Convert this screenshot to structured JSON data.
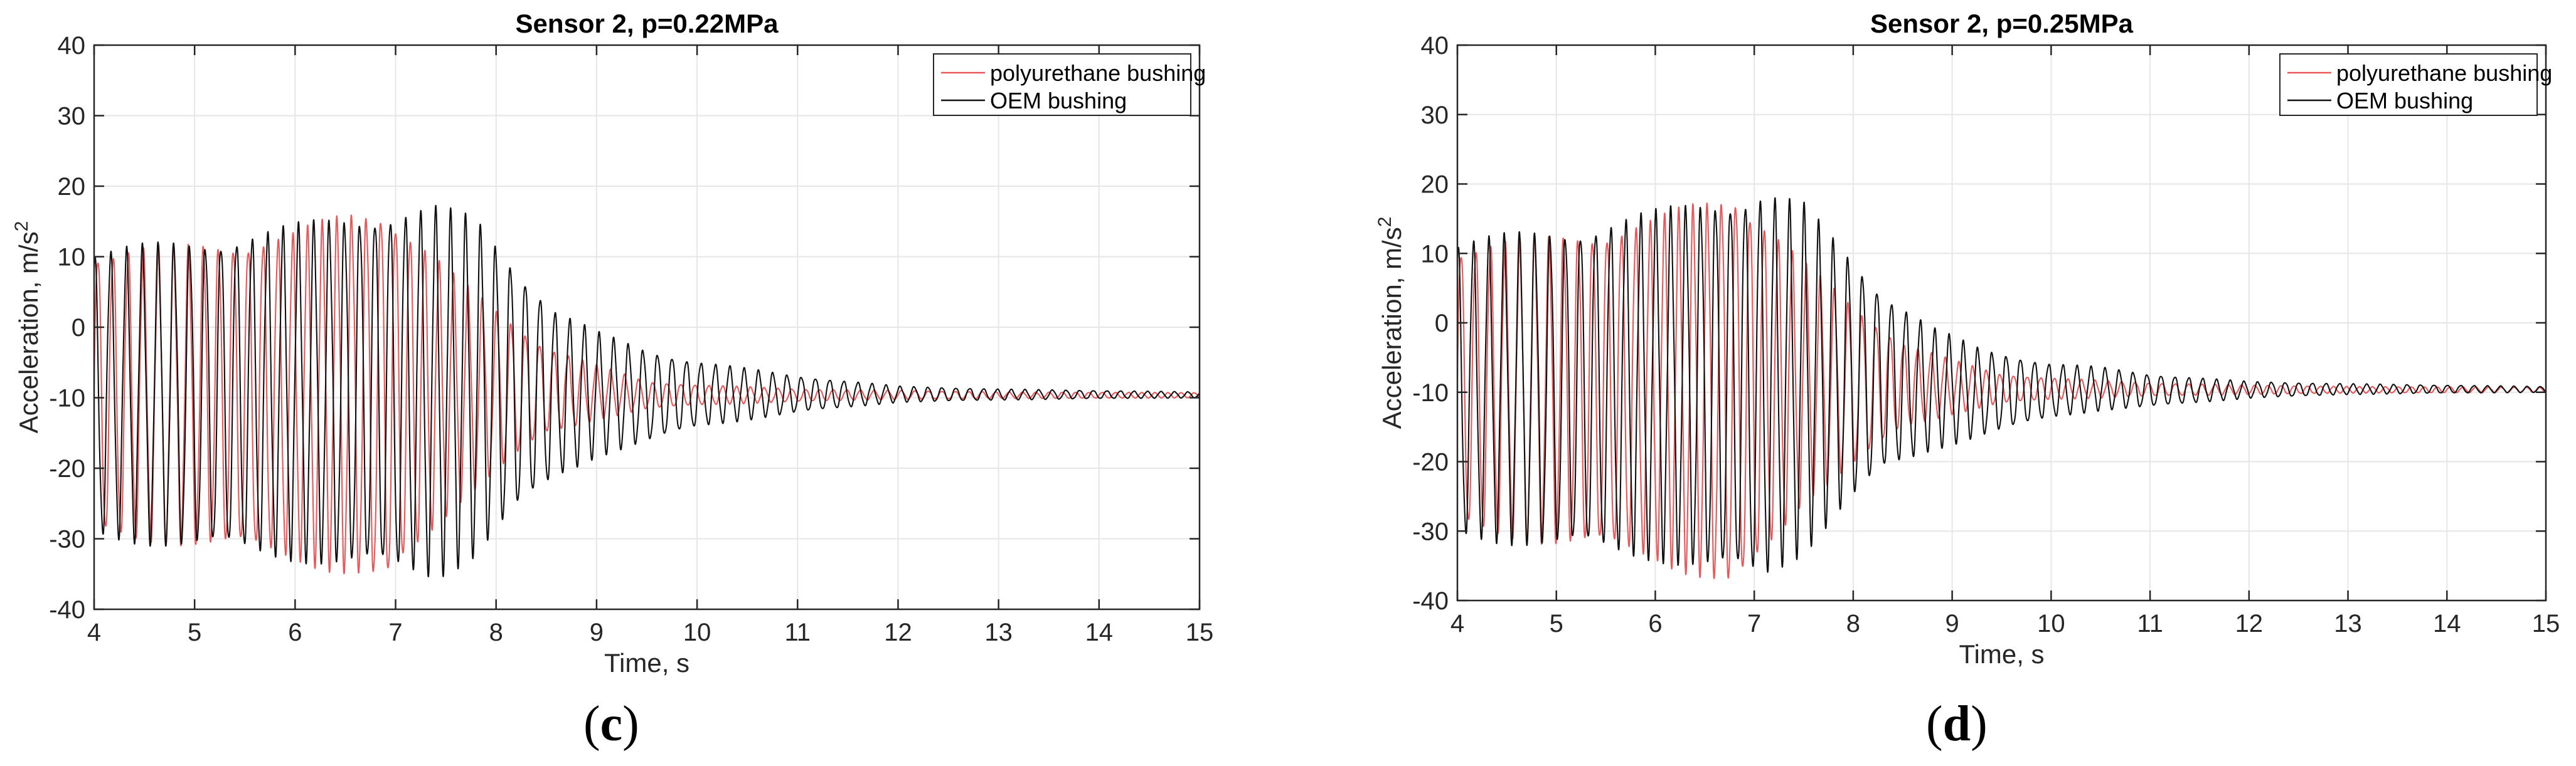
{
  "chart_data": [
    {
      "type": "line",
      "panel_label": "c",
      "title": "Sensor 2, p=0.22MPa",
      "xlabel": "Time, s",
      "ylabel": "Acceleration, m/s",
      "ylabel_superscript": "2",
      "xlim": [
        4,
        15
      ],
      "ylim": [
        -40,
        40
      ],
      "xticks": [
        4,
        5,
        6,
        7,
        8,
        9,
        10,
        11,
        12,
        13,
        14,
        15
      ],
      "yticks": [
        -40,
        -30,
        -20,
        -10,
        0,
        10,
        20,
        30,
        40
      ],
      "grid": true,
      "legend_position": "top-right",
      "series": [
        {
          "name": "polyurethane bushing",
          "color": "#e8585a",
          "offset": -9.5,
          "freq_hz": [
            6.6,
            7.7
          ],
          "envelope_upper": [
            [
              4,
              10.2
            ],
            [
              5,
              10.8
            ],
            [
              6,
              12.6
            ],
            [
              6.6,
              15.5
            ],
            [
              6.9,
              16
            ],
            [
              7.2,
              12
            ],
            [
              7.6,
              6.5
            ],
            [
              8,
              2
            ],
            [
              8.5,
              -3
            ],
            [
              9,
              -5.5
            ],
            [
              9.5,
              -7.8
            ],
            [
              10,
              -8.2
            ],
            [
              11,
              -8.8
            ],
            [
              12,
              -9
            ],
            [
              13,
              -9.2
            ],
            [
              15,
              -9.3
            ]
          ],
          "envelope_lower": [
            [
              4,
              -29
            ],
            [
              5,
              -30
            ],
            [
              6,
              -32
            ],
            [
              6.6,
              -34.5
            ],
            [
              6.9,
              -36
            ],
            [
              7.2,
              -31
            ],
            [
              7.6,
              -24.5
            ],
            [
              8,
              -20
            ],
            [
              8.5,
              -15
            ],
            [
              9,
              -13
            ],
            [
              9.5,
              -11.5
            ],
            [
              10,
              -11
            ],
            [
              11,
              -10.5
            ],
            [
              12,
              -10.2
            ],
            [
              13,
              -10.1
            ],
            [
              15,
              -10
            ]
          ]
        },
        {
          "name": "OEM bushing",
          "color": "#111111",
          "offset": -9.5,
          "freq_hz": [
            6.3,
            7.5
          ],
          "envelope_upper": [
            [
              4,
              10
            ],
            [
              5,
              11.5
            ],
            [
              6,
              13.5
            ],
            [
              6.8,
              15.5
            ],
            [
              7.4,
              16
            ],
            [
              7.8,
              14.5
            ],
            [
              8.2,
              8
            ],
            [
              8.6,
              2
            ],
            [
              9,
              -1
            ],
            [
              9.5,
              -3.5
            ],
            [
              10,
              -5
            ],
            [
              10.5,
              -6
            ],
            [
              11,
              -7
            ],
            [
              12,
              -8.4
            ],
            [
              13,
              -8.8
            ],
            [
              14,
              -9
            ],
            [
              15,
              -9.2
            ]
          ],
          "envelope_lower": [
            [
              4,
              -29
            ],
            [
              5,
              -30.5
            ],
            [
              6,
              -32
            ],
            [
              6.8,
              -33.5
            ],
            [
              7.4,
              -34.5
            ],
            [
              7.8,
              -31.5
            ],
            [
              8.2,
              -25.5
            ],
            [
              8.6,
              -21
            ],
            [
              9,
              -18
            ],
            [
              9.5,
              -16
            ],
            [
              10,
              -14
            ],
            [
              10.5,
              -13
            ],
            [
              11,
              -12
            ],
            [
              12,
              -10.6
            ],
            [
              13,
              -10.3
            ],
            [
              14,
              -10.1
            ],
            [
              15,
              -10
            ]
          ]
        }
      ]
    },
    {
      "type": "line",
      "panel_label": "d",
      "title": "Sensor 2, p=0.25MPa",
      "xlabel": "Time, s",
      "ylabel": "Acceleration, m/s",
      "ylabel_superscript": "2",
      "xlim": [
        4,
        15
      ],
      "ylim": [
        -40,
        40
      ],
      "xticks": [
        4,
        5,
        6,
        7,
        8,
        9,
        10,
        11,
        12,
        13,
        14,
        15
      ],
      "yticks": [
        -40,
        -30,
        -20,
        -10,
        0,
        10,
        20,
        30,
        40
      ],
      "grid": true,
      "legend_position": "top-right",
      "series": [
        {
          "name": "polyurethane bushing",
          "color": "#e8585a",
          "offset": -9.5,
          "freq_hz": [
            6.7,
            7.8
          ],
          "envelope_upper": [
            [
              4,
              10.5
            ],
            [
              5,
              11.5
            ],
            [
              6,
              14
            ],
            [
              6.5,
              16.5
            ],
            [
              6.8,
              18
            ],
            [
              7.1,
              14
            ],
            [
              7.5,
              8
            ],
            [
              8,
              2
            ],
            [
              8.5,
              -3
            ],
            [
              9,
              -5.5
            ],
            [
              9.5,
              -7.5
            ],
            [
              10,
              -8
            ],
            [
              11,
              -8.7
            ],
            [
              12,
              -9
            ],
            [
              13,
              -9.2
            ],
            [
              15,
              -9.3
            ]
          ],
          "envelope_lower": [
            [
              4,
              -29
            ],
            [
              5,
              -31
            ],
            [
              6,
              -33
            ],
            [
              6.5,
              -36
            ],
            [
              6.8,
              -38
            ],
            [
              7.1,
              -33
            ],
            [
              7.5,
              -25
            ],
            [
              8,
              -20
            ],
            [
              8.5,
              -15
            ],
            [
              9,
              -13
            ],
            [
              9.5,
              -11.5
            ],
            [
              10,
              -11
            ],
            [
              11,
              -10.5
            ],
            [
              12,
              -10.3
            ],
            [
              13,
              -10.1
            ],
            [
              15,
              -10
            ]
          ]
        },
        {
          "name": "OEM bushing",
          "color": "#111111",
          "offset": -9.5,
          "freq_hz": [
            6.4,
            7.5
          ],
          "envelope_upper": [
            [
              4,
              11
            ],
            [
              5,
              12.5
            ],
            [
              6,
              15
            ],
            [
              6.6,
              17
            ],
            [
              7.1,
              17.8
            ],
            [
              7.5,
              16
            ],
            [
              7.9,
              10
            ],
            [
              8.3,
              4
            ],
            [
              8.8,
              -1
            ],
            [
              9.3,
              -4
            ],
            [
              10,
              -6
            ],
            [
              10.5,
              -6.5
            ],
            [
              11,
              -7.5
            ],
            [
              12,
              -8.5
            ],
            [
              13,
              -8.8
            ],
            [
              14,
              -9
            ],
            [
              15,
              -9.2
            ]
          ],
          "envelope_lower": [
            [
              4,
              -30
            ],
            [
              5,
              -31.5
            ],
            [
              6,
              -33
            ],
            [
              6.6,
              -35
            ],
            [
              7.1,
              -36
            ],
            [
              7.5,
              -32
            ],
            [
              7.9,
              -26
            ],
            [
              8.3,
              -21
            ],
            [
              8.8,
              -18
            ],
            [
              9.3,
              -16
            ],
            [
              10,
              -13.5
            ],
            [
              10.5,
              -12.5
            ],
            [
              11,
              -12
            ],
            [
              12,
              -10.8
            ],
            [
              13,
              -10.3
            ],
            [
              14,
              -10.1
            ],
            [
              15,
              -10
            ]
          ]
        }
      ]
    }
  ]
}
